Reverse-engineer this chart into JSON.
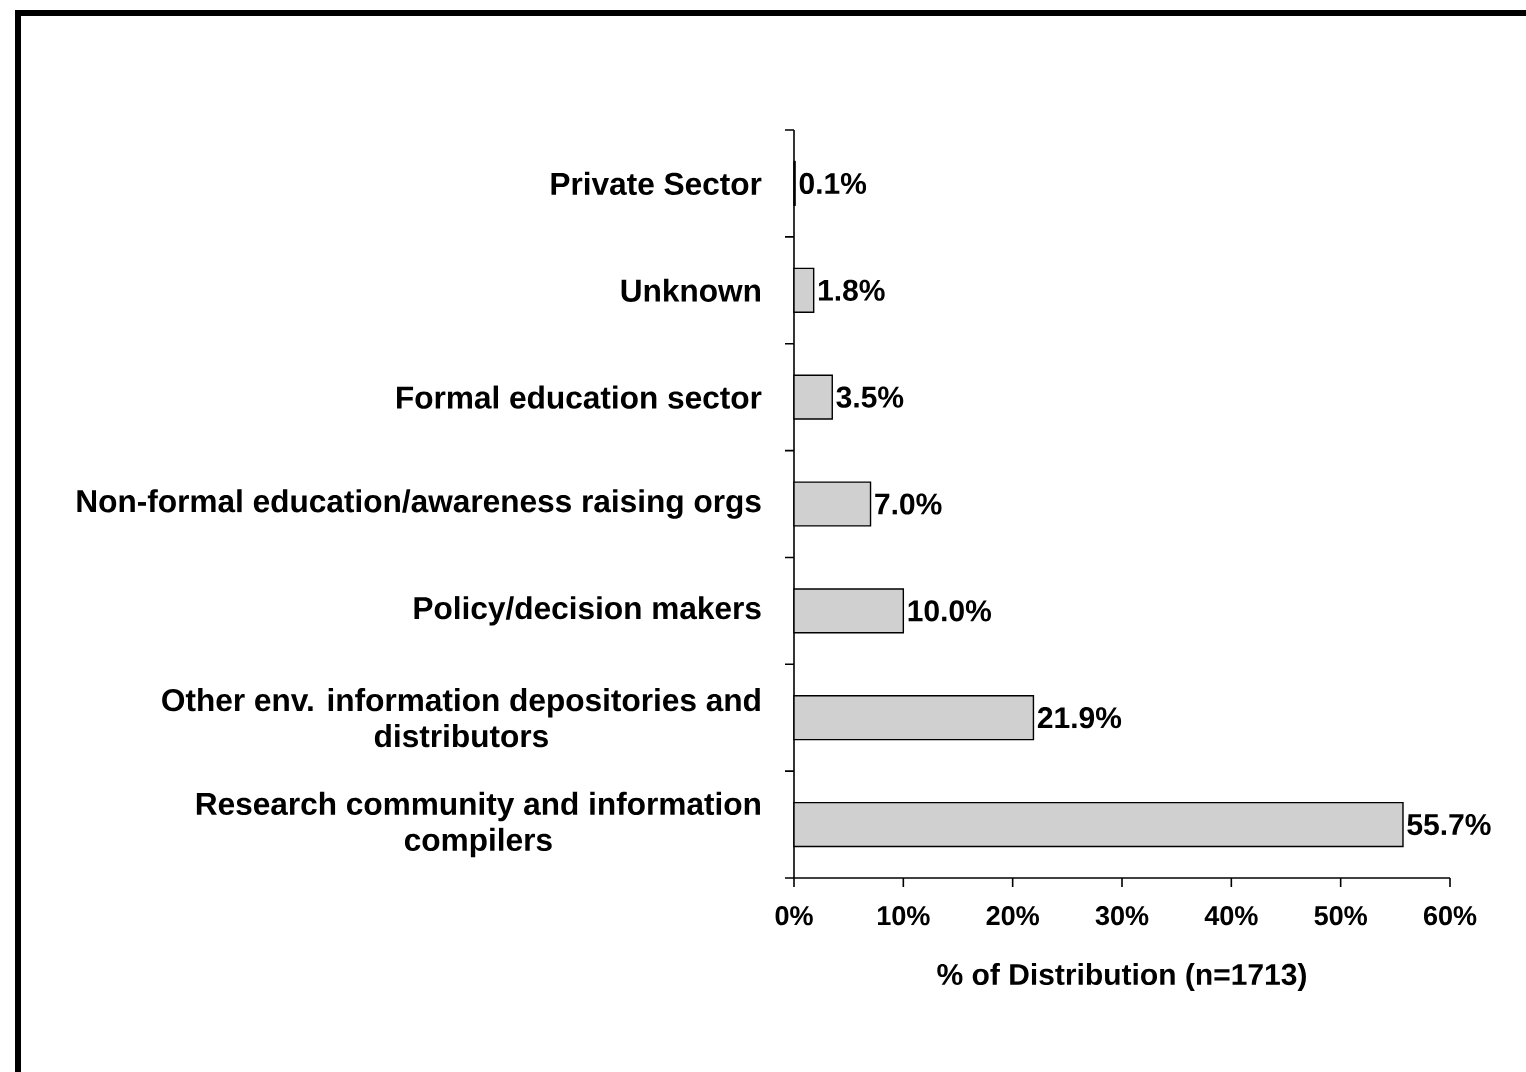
{
  "chart_data": {
    "type": "bar",
    "orientation": "horizontal",
    "categories": [
      "Private Sector",
      "Unknown",
      "Formal education sector",
      "Non-formal education/awareness raising orgs",
      "Policy/decision makers",
      "Other env. information depositories and distributors",
      "Research community and information compilers"
    ],
    "values": [
      0.1,
      1.8,
      3.5,
      7.0,
      10.0,
      21.9,
      55.7
    ],
    "value_labels": [
      "0.1%",
      "1.8%",
      "3.5%",
      "7.0%",
      "10.0%",
      "21.9%",
      "55.7%"
    ],
    "color": "#d0d0d0",
    "xlabel": "% of Distribution (n=1713)",
    "xlim": [
      0,
      60
    ],
    "xticks": [
      {
        "value": 0,
        "label": "0%"
      },
      {
        "value": 10,
        "label": "10%"
      },
      {
        "value": 20,
        "label": "20%"
      },
      {
        "value": 30,
        "label": "30%"
      },
      {
        "value": 40,
        "label": "40%"
      },
      {
        "value": 50,
        "label": "50%"
      },
      {
        "value": 60,
        "label": "60%"
      }
    ]
  }
}
